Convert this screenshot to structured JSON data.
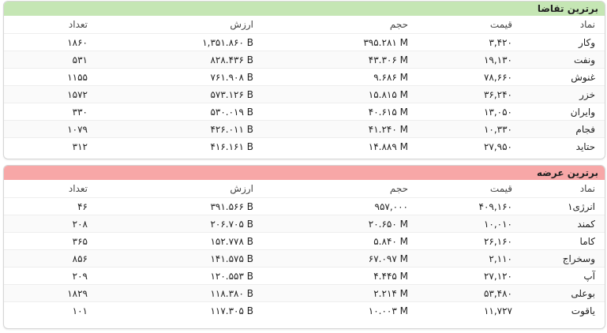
{
  "tables": [
    {
      "title": "برترین تقاضا",
      "columns": [
        "نماد",
        "قیمت",
        "حجم",
        "ارزش",
        "تعداد"
      ],
      "rows": [
        [
          "وکار",
          "۳,۴۲۰",
          "۳۹۵.۲۸۱ M",
          "۱,۳۵۱.۸۶۰ B",
          "۱۸۶۰"
        ],
        [
          "ونفت",
          "۱۹,۱۳۰",
          "۴۳.۳۰۶ M",
          "۸۲۸.۴۳۶ B",
          "۵۳۱"
        ],
        [
          "غنوش",
          "۷۸,۶۶۰",
          "۹.۶۸۶ M",
          "۷۶۱.۹۰۸ B",
          "۱۱۵۵"
        ],
        [
          "خزر",
          "۳۶,۲۴۰",
          "۱۵.۸۱۵ M",
          "۵۷۳.۱۲۶ B",
          "۱۵۷۲"
        ],
        [
          "وایران",
          "۱۳,۰۵۰",
          "۴۰.۶۱۵ M",
          "۵۳۰.۰۱۹ B",
          "۳۳۰"
        ],
        [
          "فجام",
          "۱۰,۳۳۰",
          "۴۱.۲۴۰ M",
          "۴۲۶.۰۱۱ B",
          "۱۰۷۹"
        ],
        [
          "حتاید",
          "۲۷,۹۵۰",
          "۱۴.۸۸۹ M",
          "۴۱۶.۱۶۱ B",
          "۳۱۲"
        ]
      ]
    },
    {
      "title": "برترین عرضه",
      "columns": [
        "نماد",
        "قیمت",
        "حجم",
        "ارزش",
        "تعداد"
      ],
      "rows": [
        [
          "انرژی۱",
          "۴۰۹,۱۶۰",
          "۹۵۷,۰۰۰",
          "۳۹۱.۵۶۶ B",
          "۴۶"
        ],
        [
          "کمند",
          "۱۰,۰۱۰",
          "۲۰.۶۵۰ M",
          "۲۰۶.۷۰۵ B",
          "۲۰۸"
        ],
        [
          "کاما",
          "۲۶,۱۶۰",
          "۵.۸۴۰ M",
          "۱۵۲.۷۷۸ B",
          "۳۶۵"
        ],
        [
          "وسخراج",
          "۲,۱۱۰",
          "۶۷.۰۹۷ M",
          "۱۴۱.۵۷۵ B",
          "۸۵۶"
        ],
        [
          "آپ",
          "۲۷,۱۲۰",
          "۴.۴۴۵ M",
          "۱۲۰.۵۵۳ B",
          "۲۰۹"
        ],
        [
          "بوعلی",
          "۵۳,۴۸۰",
          "۲.۲۱۴ M",
          "۱۱۸.۳۸۰ B",
          "۱۸۲۹"
        ],
        [
          "یاقوت",
          "۱۱,۷۲۷",
          "۱۰.۰۰۳ M",
          "۱۱۷.۳۰۵ B",
          "۱۰۱"
        ]
      ]
    }
  ]
}
